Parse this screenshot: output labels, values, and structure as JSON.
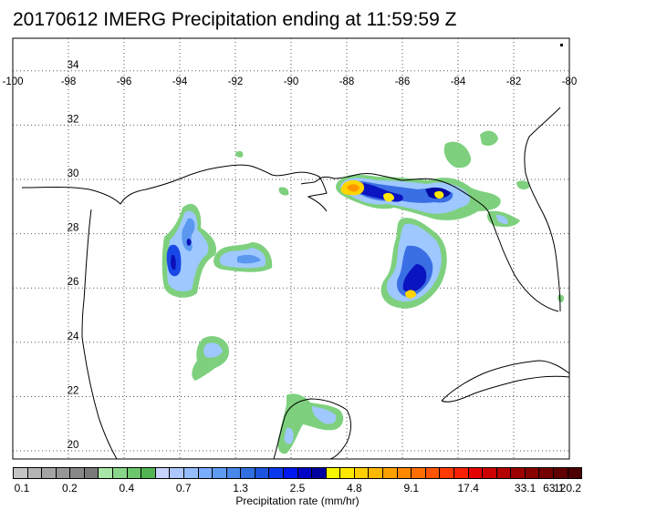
{
  "title": "20170612 IMERG Precipitation ending at 11:59:59 Z",
  "map": {
    "lon_ticks": [
      "-100",
      "-98",
      "-96",
      "-94",
      "-92",
      "-90",
      "-88",
      "-86",
      "-84",
      "-82",
      "-80"
    ],
    "lat_ticks": [
      "34",
      "32",
      "30",
      "28",
      "26",
      "24",
      "22",
      "20"
    ],
    "lon_range": [
      -100,
      -80
    ],
    "lat_range": [
      19.7,
      35.2
    ],
    "grid": "dotted"
  },
  "colorbar": {
    "colors": [
      "#c4c4c4",
      "#b4b4b4",
      "#a4a4a4",
      "#969696",
      "#888888",
      "#7a7a7a",
      "#a8e6a8",
      "#8ad68a",
      "#6cc66c",
      "#52b452",
      "#c8d4ff",
      "#aec8ff",
      "#94bcff",
      "#7aacff",
      "#5e9cf2",
      "#4888ea",
      "#3070e0",
      "#1c54e0",
      "#0a38ea",
      "#0018f0",
      "#0004c4",
      "#0000a0",
      "#f6f600",
      "#ffe800",
      "#ffd000",
      "#ffb800",
      "#ffa000",
      "#ff8800",
      "#ff6e00",
      "#ff5400",
      "#ff3a00",
      "#f82000",
      "#e40000",
      "#cc0000",
      "#b40000",
      "#9c0000",
      "#880000",
      "#740000",
      "#600000",
      "#4c0000"
    ],
    "labels": [
      "0.1",
      "0.2",
      "0.4",
      "0.7",
      "1.3",
      "2.5",
      "4.8",
      "9.1",
      "17.4",
      "33.1",
      "63.1",
      "120.2"
    ],
    "label_fractions": [
      0,
      0.1,
      0.2,
      0.3,
      0.4,
      0.5,
      0.6,
      0.7,
      0.8,
      0.9,
      0.95,
      1.0
    ],
    "title": "Precipitation rate (mm/hr)"
  },
  "precip_areas": [
    {
      "lon": -94.3,
      "lat": 28.4,
      "rx": 0.45,
      "ry": 0.55,
      "level": "0.7-1.3"
    },
    {
      "lon": -94.5,
      "lat": 27.1,
      "rx": 0.55,
      "ry": 0.7,
      "level": "1.3-2.5"
    },
    {
      "lon": -91.8,
      "lat": 27.1,
      "rx": 1.0,
      "ry": 0.3,
      "level": "0.7-1.3"
    },
    {
      "lon": -87.6,
      "lat": 29.8,
      "rx": 0.35,
      "ry": 0.2,
      "level": "9.1-17.4"
    },
    {
      "lon": -86.2,
      "lat": 29.6,
      "rx": 0.15,
      "ry": 0.12,
      "level": "4.8-9.1"
    },
    {
      "lon": -84.7,
      "lat": 29.5,
      "rx": 0.15,
      "ry": 0.12,
      "level": "4.8-9.1"
    },
    {
      "lon": -85.6,
      "lat": 26.0,
      "rx": 0.15,
      "ry": 0.12,
      "level": "4.8-9.1"
    },
    {
      "lon": -85.6,
      "lat": 26.7,
      "rx": 0.9,
      "ry": 1.0,
      "level": "1.3-2.5"
    },
    {
      "lon": -93.3,
      "lat": 23.5,
      "rx": 0.55,
      "ry": 0.55,
      "level": "0.4-0.7"
    },
    {
      "lon": -89.2,
      "lat": 21.3,
      "rx": 0.9,
      "ry": 0.5,
      "level": "0.4-0.7"
    }
  ]
}
